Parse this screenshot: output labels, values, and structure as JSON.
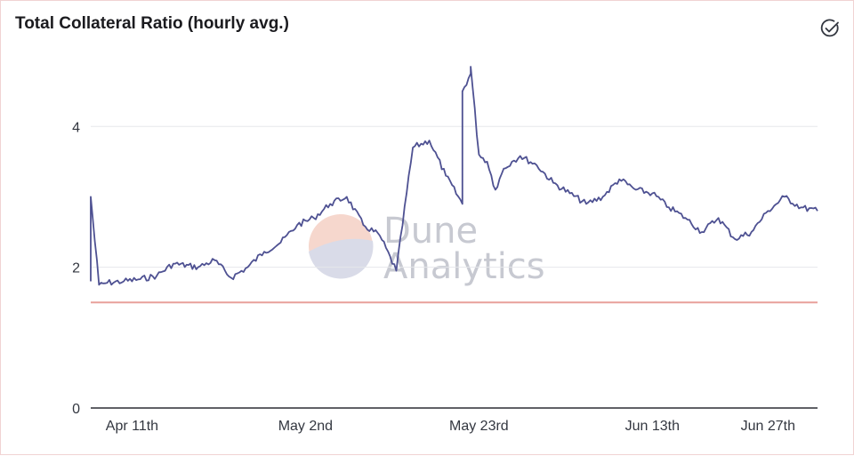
{
  "chart_data": {
    "type": "line",
    "title": "Total Collateral Ratio (hourly avg.)",
    "xlabel": "",
    "ylabel": "",
    "ylim": [
      0,
      4.9
    ],
    "yticks": [
      0,
      2,
      4
    ],
    "xlim": [
      "2021-04-06",
      "2021-07-03"
    ],
    "xticks": [
      "Apr 11th",
      "May 2nd",
      "May 23rd",
      "Jun 13th",
      "Jun 27th"
    ],
    "grid": true,
    "legend": "none",
    "series": [
      {
        "color": "#4e5192",
        "x": [
          "2021-04-06",
          "2021-04-06",
          "2021-04-07",
          "2021-04-08",
          "2021-04-10",
          "2021-04-12",
          "2021-04-14",
          "2021-04-16",
          "2021-04-19",
          "2021-04-21",
          "2021-04-23",
          "2021-04-25",
          "2021-04-27",
          "2021-04-29",
          "2021-05-01",
          "2021-05-03",
          "2021-05-05",
          "2021-05-07",
          "2021-05-09",
          "2021-05-11",
          "2021-05-13",
          "2021-05-15",
          "2021-05-17",
          "2021-05-19",
          "2021-05-21",
          "2021-05-21",
          "2021-05-22",
          "2021-05-22",
          "2021-05-23",
          "2021-05-24",
          "2021-05-25",
          "2021-05-26",
          "2021-05-27",
          "2021-05-28",
          "2021-05-30",
          "2021-06-01",
          "2021-06-03",
          "2021-06-05",
          "2021-06-07",
          "2021-06-09",
          "2021-06-11",
          "2021-06-13",
          "2021-06-15",
          "2021-06-17",
          "2021-06-19",
          "2021-06-21",
          "2021-06-23",
          "2021-06-25",
          "2021-06-27",
          "2021-06-29",
          "2021-07-01",
          "2021-07-03"
        ],
        "y": [
          1.8,
          3.0,
          1.75,
          1.78,
          1.8,
          1.83,
          1.88,
          2.05,
          2.0,
          2.1,
          1.85,
          2.0,
          2.22,
          2.35,
          2.6,
          2.7,
          2.9,
          3.0,
          2.6,
          2.45,
          1.95,
          3.7,
          3.8,
          3.3,
          2.9,
          4.5,
          4.75,
          4.85,
          3.6,
          3.5,
          3.1,
          3.4,
          3.5,
          3.58,
          3.45,
          3.2,
          3.05,
          2.9,
          3.0,
          3.25,
          3.1,
          3.05,
          2.85,
          2.7,
          2.5,
          2.7,
          2.4,
          2.5,
          2.8,
          3.0,
          2.85,
          2.8
        ]
      },
      {
        "color": "#e8a09a",
        "x": [
          "2021-04-06",
          "2021-07-03"
        ],
        "y": [
          1.5,
          1.5
        ]
      }
    ]
  },
  "watermark": {
    "line1": "Dune",
    "line2": "Analytics"
  },
  "actions": {
    "check_icon": "check-circle-icon"
  }
}
